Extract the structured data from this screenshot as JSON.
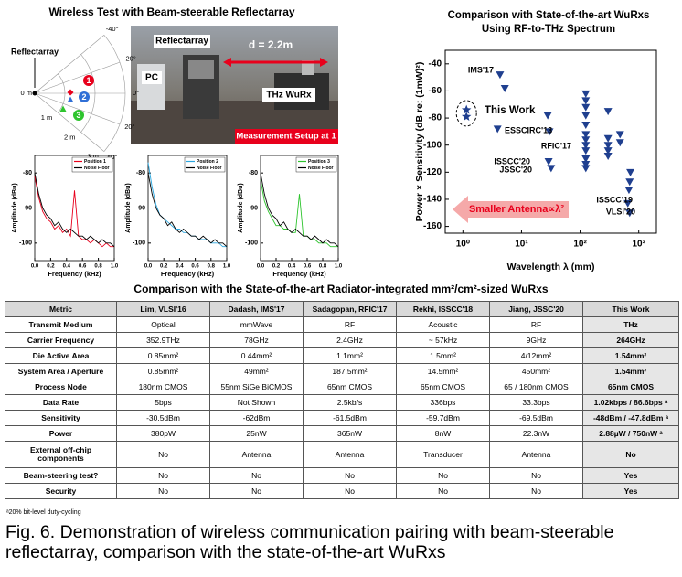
{
  "left_panel": {
    "title": "Wireless Test with Beam-steerable Reflectarray",
    "polar": {
      "label": "Reflectarray",
      "angles": [
        {
          "value": -40,
          "label": "-40°"
        },
        {
          "value": -20,
          "label": "-20°"
        },
        {
          "value": 0,
          "label": "0°"
        },
        {
          "value": 20,
          "label": "20°"
        },
        {
          "value": 40,
          "label": "40°"
        }
      ],
      "radii": [
        {
          "value": 0,
          "label": "0 m"
        },
        {
          "value": 1,
          "label": "1 m"
        },
        {
          "value": 2,
          "label": "2 m"
        },
        {
          "value": 3,
          "label": "3 m"
        }
      ],
      "positions": [
        {
          "label": "1",
          "color": "#e8001c"
        },
        {
          "label": "2",
          "color": "#2f6fd6"
        },
        {
          "label": "3",
          "color": "#2ec42e"
        }
      ]
    },
    "photo": {
      "reflectarray": "Reflectarray",
      "pc": "PC",
      "distance": "d = 2.2m",
      "receiver": "THz WuRx",
      "caption": "Measurement Setup at 1"
    }
  },
  "chart_data": [
    {
      "type": "scatter",
      "title": "Comparison with State-of-the-art WuRxs",
      "subtitle": "Using RF-to-THz Spectrum",
      "xlabel": "Wavelength λ (mm)",
      "ylabel": "Power × Sensitivity (dB re: (1mW)²)",
      "xscale": "log",
      "xlim": [
        0.5,
        2000
      ],
      "ylim": [
        -165,
        -30
      ],
      "xticks": [
        {
          "value": 1,
          "label": "10⁰"
        },
        {
          "value": 10,
          "label": "10¹"
        },
        {
          "value": 100,
          "label": "10²"
        },
        {
          "value": 1000,
          "label": "10³"
        }
      ],
      "yticks": [
        -40,
        -60,
        -80,
        -100,
        -120,
        -140,
        -160
      ],
      "series": [
        {
          "color": "#1f3f8f",
          "marker": "triangle-down",
          "x": [
            4.3,
            5.2,
            3.9,
            28,
            30,
            29,
            32,
            125,
            125,
            125,
            125,
            125,
            125,
            125,
            125,
            125,
            125,
            125,
            125,
            300,
            300,
            300,
            300,
            300,
            480,
            480,
            720,
            700,
            680,
            650,
            700
          ],
          "values": [
            -48,
            -58,
            -88,
            -78,
            -90,
            -112,
            -117,
            -62,
            -67,
            -72,
            -78,
            -85,
            -92,
            -96,
            -100,
            -104,
            -110,
            -114,
            -117,
            -75,
            -95,
            -100,
            -104,
            -108,
            -92,
            -98,
            -120,
            -127,
            -133,
            -143,
            -150
          ]
        },
        {
          "color": "#1f3f8f",
          "marker": "star",
          "x": [
            1.15,
            1.15
          ],
          "values": [
            -74,
            -79
          ]
        }
      ],
      "annotations": [
        "IMS'17",
        "This Work",
        "ESSCIRC'13",
        "RFIC'17",
        "ISSCC'20",
        "JSSC'20",
        "ISSCC'19",
        "VLSI'20",
        "Smaller Antenna∝λ²"
      ]
    },
    {
      "type": "line",
      "xlabel": "Frequency (kHz)",
      "ylabel": "Amplitude (dBu)",
      "xlim": [
        0,
        1
      ],
      "ylim": [
        -105,
        -75
      ],
      "xticks": [
        {
          "value": 0,
          "label": "0.0"
        },
        0.2,
        0.4,
        0.6,
        0.8,
        {
          "value": 1,
          "label": "1.0"
        }
      ],
      "yticks": [
        -80,
        -90,
        -100
      ],
      "legend": "upper right",
      "x": [
        0,
        0.05,
        0.1,
        0.15,
        0.2,
        0.25,
        0.3,
        0.35,
        0.4,
        0.45,
        0.5,
        0.55,
        0.6,
        0.65,
        0.7,
        0.75,
        0.8,
        0.85,
        0.9,
        0.95,
        1
      ],
      "series": [
        {
          "name": "Position 1",
          "color": "#e8001c",
          "values": [
            -81,
            -87,
            -91,
            -93,
            -94,
            -96,
            -95,
            -97,
            -96,
            -98,
            -85,
            -98,
            -99,
            -99,
            -100,
            -99,
            -100,
            -101,
            -100,
            -101,
            -101
          ]
        },
        {
          "name": "Noise Floor",
          "color": "#000000",
          "values": [
            -80,
            -86,
            -90,
            -92,
            -93,
            -95,
            -94,
            -96,
            -97,
            -96,
            -97,
            -98,
            -98,
            -99,
            -98,
            -99,
            -100,
            -99,
            -100,
            -100,
            -101
          ]
        }
      ]
    },
    {
      "type": "line",
      "xlabel": "Frequency (kHz)",
      "ylabel": "Amplitude (dBu)",
      "xlim": [
        0,
        1
      ],
      "ylim": [
        -105,
        -75
      ],
      "xticks": [
        {
          "value": 0,
          "label": "0.0"
        },
        0.2,
        0.4,
        0.6,
        0.8,
        {
          "value": 1,
          "label": "1.0"
        }
      ],
      "yticks": [
        -80,
        -90,
        -100
      ],
      "legend": "upper right",
      "x": [
        0,
        0.05,
        0.1,
        0.15,
        0.2,
        0.25,
        0.3,
        0.35,
        0.4,
        0.45,
        0.5,
        0.55,
        0.6,
        0.65,
        0.7,
        0.75,
        0.8,
        0.85,
        0.9,
        0.95,
        1
      ],
      "series": [
        {
          "name": "Position 2",
          "color": "#2aa7e0",
          "values": [
            -77,
            -84,
            -89,
            -92,
            -93,
            -94,
            -95,
            -96,
            -96,
            -97,
            -97,
            -98,
            -98,
            -99,
            -99,
            -99,
            -100,
            -100,
            -100,
            -101,
            -101
          ]
        },
        {
          "name": "Noise Floor",
          "color": "#000000",
          "values": [
            -80,
            -86,
            -90,
            -92,
            -93,
            -95,
            -94,
            -96,
            -97,
            -96,
            -97,
            -98,
            -98,
            -99,
            -98,
            -99,
            -100,
            -99,
            -100,
            -100,
            -101
          ]
        }
      ]
    },
    {
      "type": "line",
      "xlabel": "Frequency (kHz)",
      "ylabel": "Amplitude (dBu)",
      "xlim": [
        0,
        1
      ],
      "ylim": [
        -105,
        -75
      ],
      "xticks": [
        {
          "value": 0,
          "label": "0.0"
        },
        0.2,
        0.4,
        0.6,
        0.8,
        {
          "value": 1,
          "label": "1.0"
        }
      ],
      "yticks": [
        -80,
        -90,
        -100
      ],
      "legend": "upper right",
      "x": [
        0,
        0.05,
        0.1,
        0.15,
        0.2,
        0.25,
        0.3,
        0.35,
        0.4,
        0.45,
        0.5,
        0.55,
        0.6,
        0.65,
        0.7,
        0.75,
        0.8,
        0.85,
        0.9,
        0.95,
        1
      ],
      "series": [
        {
          "name": "Position 3",
          "color": "#2ec42e",
          "values": [
            -82,
            -88,
            -91,
            -93,
            -95,
            -95,
            -96,
            -96,
            -97,
            -97,
            -86,
            -98,
            -98,
            -99,
            -99,
            -100,
            -100,
            -100,
            -101,
            -101,
            -101
          ]
        },
        {
          "name": "Noise Floor",
          "color": "#000000",
          "values": [
            -80,
            -86,
            -90,
            -92,
            -93,
            -95,
            -94,
            -96,
            -97,
            -96,
            -97,
            -98,
            -98,
            -99,
            -98,
            -99,
            -100,
            -99,
            -100,
            -100,
            -101
          ]
        }
      ]
    }
  ],
  "table": {
    "title": "Comparison with the State-of-the-art Radiator-integrated mm²/cm²-sized WuRxs",
    "header": [
      "Metric",
      "Lim, VLSI'16",
      "Dadash, IMS'17",
      "Sadagopan, RFIC'17",
      "Rekhi, ISSCC'18",
      "Jiang, JSSC'20",
      "This Work"
    ],
    "rows": [
      [
        "Transmit Medium",
        "Optical",
        "mmWave",
        "RF",
        "Acoustic",
        "RF",
        "THz"
      ],
      [
        "Carrier Frequency",
        "352.9THz",
        "78GHz",
        "2.4GHz",
        "~ 57kHz",
        "9GHz",
        "264GHz"
      ],
      [
        "Die Active Area",
        "0.85mm²",
        "0.44mm²",
        "1.1mm²",
        "1.5mm²",
        "4/12mm²",
        "1.54mm²"
      ],
      [
        "System Area / Aperture",
        "0.85mm²",
        "49mm²",
        "187.5mm²",
        "14.5mm²",
        "450mm²",
        "1.54mm²"
      ],
      [
        "Process Node",
        "180nm CMOS",
        "55nm SiGe BiCMOS",
        "65nm CMOS",
        "65nm CMOS",
        "65 / 180nm CMOS",
        "65nm CMOS"
      ],
      [
        "Data Rate",
        "5bps",
        "Not Shown",
        "2.5kb/s",
        "336bps",
        "33.3bps",
        "1.02kbps / 86.6bps ᵃ"
      ],
      [
        "Sensitivity",
        "-30.5dBm",
        "-62dBm",
        "-61.5dBm",
        "-59.7dBm",
        "-69.5dBm",
        "-48dBm / -47.8dBm ᵃ"
      ],
      [
        "Power",
        "380pW",
        "25nW",
        "365nW",
        "8nW",
        "22.3nW",
        "2.88µW / 750nW ᵃ"
      ],
      [
        "External off-chip components",
        "No",
        "Antenna",
        "Antenna",
        "Transducer",
        "Antenna",
        "No"
      ],
      [
        "Beam-steering test?",
        "No",
        "No",
        "No",
        "No",
        "No",
        "Yes"
      ],
      [
        "Security",
        "No",
        "No",
        "No",
        "No",
        "No",
        "Yes"
      ]
    ],
    "footnote": "ᵃ20% bit-level duty-cycling"
  },
  "caption": "Fig. 6. Demonstration of wireless communication pairing with beam-steerable reflectarray, comparison with the state-of-the-art WuRxs"
}
